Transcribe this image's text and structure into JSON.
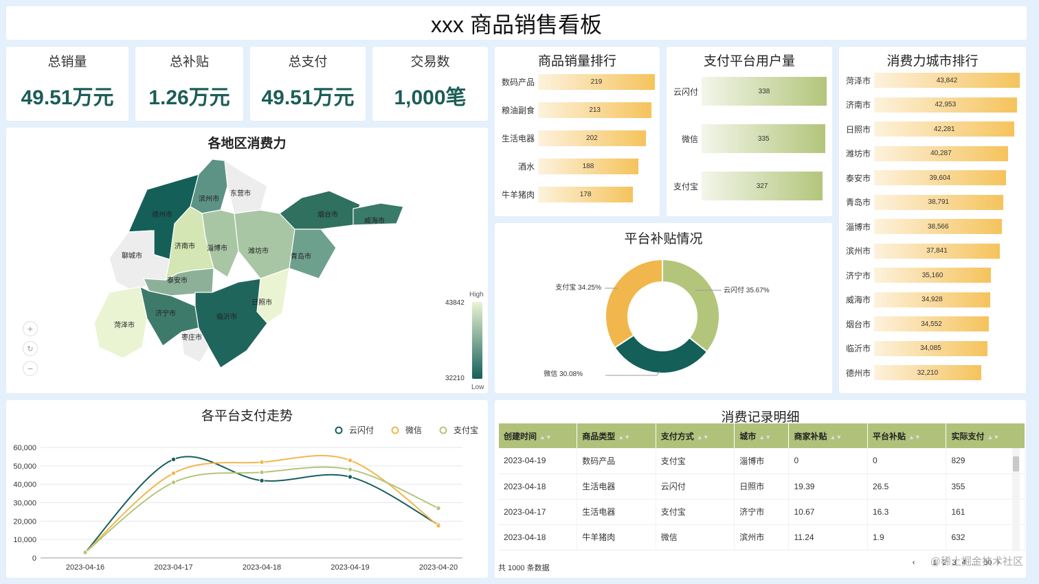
{
  "page_title": "xxx 商品销售看板",
  "kpis": [
    {
      "label": "总销量",
      "value": "49.51万元"
    },
    {
      "label": "总补贴",
      "value": "1.26万元"
    },
    {
      "label": "总支付",
      "value": "49.51万元"
    },
    {
      "label": "交易数",
      "value": "1,000笔"
    }
  ],
  "product_ranking": {
    "title": "商品销量排行",
    "items": [
      {
        "label": "数码产品",
        "value": 219
      },
      {
        "label": "粮油副食",
        "value": 213
      },
      {
        "label": "生活电器",
        "value": 202
      },
      {
        "label": "酒水",
        "value": 188
      },
      {
        "label": "牛羊猪肉",
        "value": 178
      }
    ]
  },
  "platform_users": {
    "title": "支付平台用户量",
    "items": [
      {
        "label": "云闪付",
        "value": 338
      },
      {
        "label": "微信",
        "value": 335
      },
      {
        "label": "支付宝",
        "value": 327
      }
    ]
  },
  "city_ranking": {
    "title": "消费力城市排行",
    "items": [
      {
        "label": "菏泽市",
        "value": 43842,
        "text": "43,842"
      },
      {
        "label": "济南市",
        "value": 42953,
        "text": "42,953"
      },
      {
        "label": "日照市",
        "value": 42281,
        "text": "42,281"
      },
      {
        "label": "潍坊市",
        "value": 40287,
        "text": "40,287"
      },
      {
        "label": "泰安市",
        "value": 39604,
        "text": "39,604"
      },
      {
        "label": "青岛市",
        "value": 38791,
        "text": "38,791"
      },
      {
        "label": "淄博市",
        "value": 38566,
        "text": "38,566"
      },
      {
        "label": "滨州市",
        "value": 37841,
        "text": "37,841"
      },
      {
        "label": "济宁市",
        "value": 35160,
        "text": "35,160"
      },
      {
        "label": "威海市",
        "value": 34928,
        "text": "34,928"
      },
      {
        "label": "烟台市",
        "value": 34552,
        "text": "34,552"
      },
      {
        "label": "临沂市",
        "value": 34085,
        "text": "34,085"
      },
      {
        "label": "德州市",
        "value": 32210,
        "text": "32,210"
      }
    ]
  },
  "map": {
    "title": "各地区消费力",
    "legend_high": "High",
    "legend_low": "Low",
    "legend_max": "43842",
    "legend_min": "32210",
    "zoom_in": "+",
    "zoom_reset": "↻",
    "zoom_out": "−",
    "regions": {
      "dezhou": "德州市",
      "binzhou": "滨州市",
      "dongying": "东营市",
      "liaocheng": "聊城市",
      "jinan": "济南市",
      "zibo": "淄博市",
      "weifang": "潍坊市",
      "yantai": "烟台市",
      "weihai": "威海市",
      "qingdao": "青岛市",
      "taian": "泰安市",
      "rizhao": "日照市",
      "heze": "菏泽市",
      "jining": "济宁市",
      "linyi": "临沂市",
      "zaozhuang": "枣庄市"
    }
  },
  "subsidy": {
    "title": "平台补贴情况",
    "slices": [
      {
        "name": "云闪付",
        "value": 35.67,
        "label": "云闪付 35.67%",
        "color": "#b3c57b"
      },
      {
        "name": "微信",
        "value": 30.08,
        "label": "微信 30.08%",
        "color": "#155f59"
      },
      {
        "name": "支付宝",
        "value": 34.25,
        "label": "支付宝 34.25%",
        "color": "#f1b74c"
      }
    ]
  },
  "chart_data": {
    "type": "line",
    "title": "各平台支付走势",
    "categories": [
      "2023-04-16",
      "2023-04-17",
      "2023-04-18",
      "2023-04-19",
      "2023-04-20"
    ],
    "ylim": [
      0,
      60000
    ],
    "yticks": [
      "0",
      "10,000",
      "20,000",
      "30,000",
      "40,000",
      "50,000",
      "60,000"
    ],
    "series": [
      {
        "name": "云闪付",
        "color": "#155f59",
        "values": [
          3000,
          53500,
          42000,
          44000,
          18000
        ]
      },
      {
        "name": "微信",
        "color": "#f1b74c",
        "values": [
          3000,
          46000,
          52000,
          53000,
          17500
        ]
      },
      {
        "name": "支付宝",
        "color": "#b3c57b",
        "values": [
          3000,
          41000,
          46500,
          48000,
          27000
        ]
      }
    ]
  },
  "records": {
    "title": "消费记录明细",
    "columns": [
      "创建时间",
      "商品类型",
      "支付方式",
      "城市",
      "商家补贴",
      "平台补贴",
      "实际支付"
    ],
    "rows": [
      [
        "2023-04-19",
        "数码产品",
        "支付宝",
        "淄博市",
        "0",
        "0",
        "829"
      ],
      [
        "2023-04-18",
        "生活电器",
        "云闪付",
        "日照市",
        "19.39",
        "26.5",
        "355"
      ],
      [
        "2023-04-17",
        "生活电器",
        "支付宝",
        "济宁市",
        "10.67",
        "16.3",
        "161"
      ],
      [
        "2023-04-18",
        "牛羊猪肉",
        "微信",
        "滨州市",
        "11.24",
        "1.9",
        "632"
      ]
    ],
    "total": "共 1000 条数据",
    "pages": [
      "1",
      "2",
      "3",
      "4",
      "...",
      "50"
    ],
    "prev": "‹",
    "next": "›",
    "watermark": "@稀土掘金技术社区"
  }
}
